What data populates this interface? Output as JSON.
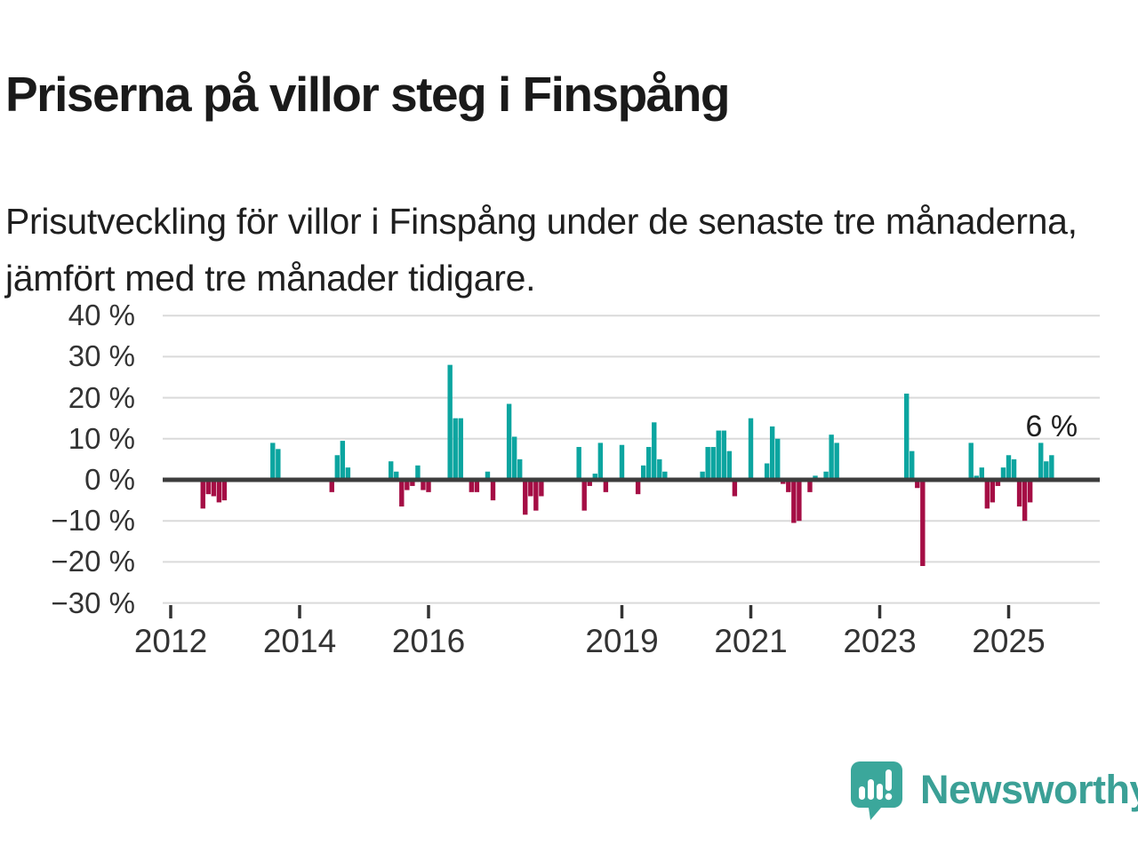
{
  "header": {
    "title": "Priserna på villor steg i Finspång",
    "subtitle": "Prisutveckling för villor i Finspång under de senaste tre månaderna, jämfört med tre månader tidigare."
  },
  "footer": {
    "brand": "Newsworthy",
    "logo_icon": "newsworthy-speech-bubble-chart-icon",
    "brand_color": "#3ba096"
  },
  "chart_data": {
    "type": "bar",
    "unit": "%",
    "grid": true,
    "legend": "none",
    "ylim": [
      -33,
      43
    ],
    "xlim": [
      2011.9,
      2026.45
    ],
    "y_ticks": [
      40,
      30,
      20,
      10,
      0,
      -10,
      -20,
      -30
    ],
    "y_tick_labels": [
      "40 %",
      "30 %",
      "20 %",
      "10 %",
      "0 %",
      "−10 %",
      "−20 %",
      "−30 %"
    ],
    "x_ticks": [
      2012,
      2014,
      2016,
      2019,
      2021,
      2023,
      2025
    ],
    "x_tick_labels": [
      "2012",
      "2014",
      "2016",
      "2019",
      "2021",
      "2023",
      "2025"
    ],
    "colors": {
      "positive": "#0ca5a0",
      "negative": "#a50e45",
      "axis": "#3d3d3d",
      "gridline": "#dadada",
      "tick": "#333333"
    },
    "annotation": {
      "text": "6 %",
      "month": "2025-09"
    },
    "points": [
      [
        "2012-07",
        -7
      ],
      [
        "2012-08",
        -3.5
      ],
      [
        "2012-09",
        -4
      ],
      [
        "2012-10",
        -5.5
      ],
      [
        "2012-11",
        -5
      ],
      [
        "2013-08",
        9
      ],
      [
        "2013-09",
        7.5
      ],
      [
        "2014-07",
        -3
      ],
      [
        "2014-08",
        6
      ],
      [
        "2014-09",
        9.5
      ],
      [
        "2014-10",
        3
      ],
      [
        "2015-06",
        4.5
      ],
      [
        "2015-07",
        2
      ],
      [
        "2015-08",
        -6.5
      ],
      [
        "2015-09",
        -2.5
      ],
      [
        "2015-10",
        -1.5
      ],
      [
        "2015-11",
        3.5
      ],
      [
        "2015-12",
        -2.5
      ],
      [
        "2016-01",
        -3
      ],
      [
        "2016-05",
        28
      ],
      [
        "2016-06",
        15
      ],
      [
        "2016-07",
        15
      ],
      [
        "2016-09",
        -3
      ],
      [
        "2016-10",
        -3
      ],
      [
        "2016-12",
        2
      ],
      [
        "2017-01",
        -5
      ],
      [
        "2017-04",
        18.5
      ],
      [
        "2017-05",
        10.5
      ],
      [
        "2017-06",
        5
      ],
      [
        "2017-07",
        -8.5
      ],
      [
        "2017-08",
        -4
      ],
      [
        "2017-09",
        -7.5
      ],
      [
        "2017-10",
        -4
      ],
      [
        "2018-05",
        8
      ],
      [
        "2018-06",
        -7.5
      ],
      [
        "2018-07",
        -1.5
      ],
      [
        "2018-08",
        1.5
      ],
      [
        "2018-09",
        9
      ],
      [
        "2018-10",
        -3
      ],
      [
        "2019-01",
        8.5
      ],
      [
        "2019-04",
        -3.5
      ],
      [
        "2019-05",
        3.5
      ],
      [
        "2019-06",
        8
      ],
      [
        "2019-07",
        14
      ],
      [
        "2019-08",
        5
      ],
      [
        "2019-09",
        2
      ],
      [
        "2020-04",
        2
      ],
      [
        "2020-05",
        8
      ],
      [
        "2020-06",
        8
      ],
      [
        "2020-07",
        12
      ],
      [
        "2020-08",
        12
      ],
      [
        "2020-09",
        7
      ],
      [
        "2020-10",
        -4
      ],
      [
        "2021-01",
        15
      ],
      [
        "2021-04",
        4
      ],
      [
        "2021-05",
        13
      ],
      [
        "2021-06",
        10
      ],
      [
        "2021-07",
        -1
      ],
      [
        "2021-08",
        -3
      ],
      [
        "2021-09",
        -10.5
      ],
      [
        "2021-10",
        -10
      ],
      [
        "2021-12",
        -3
      ],
      [
        "2022-01",
        1
      ],
      [
        "2022-03",
        2
      ],
      [
        "2022-04",
        11
      ],
      [
        "2022-05",
        9
      ],
      [
        "2023-06",
        21
      ],
      [
        "2023-07",
        7
      ],
      [
        "2023-08",
        -2
      ],
      [
        "2023-09",
        -21
      ],
      [
        "2024-06",
        9
      ],
      [
        "2024-07",
        1
      ],
      [
        "2024-08",
        3
      ],
      [
        "2024-09",
        -7
      ],
      [
        "2024-10",
        -5.5
      ],
      [
        "2024-11",
        -1.5
      ],
      [
        "2024-12",
        3
      ],
      [
        "2025-01",
        6
      ],
      [
        "2025-02",
        5
      ],
      [
        "2025-03",
        -6.5
      ],
      [
        "2025-04",
        -10
      ],
      [
        "2025-05",
        -5.5
      ],
      [
        "2025-07",
        9
      ],
      [
        "2025-08",
        4.5
      ],
      [
        "2025-09",
        6
      ]
    ]
  }
}
